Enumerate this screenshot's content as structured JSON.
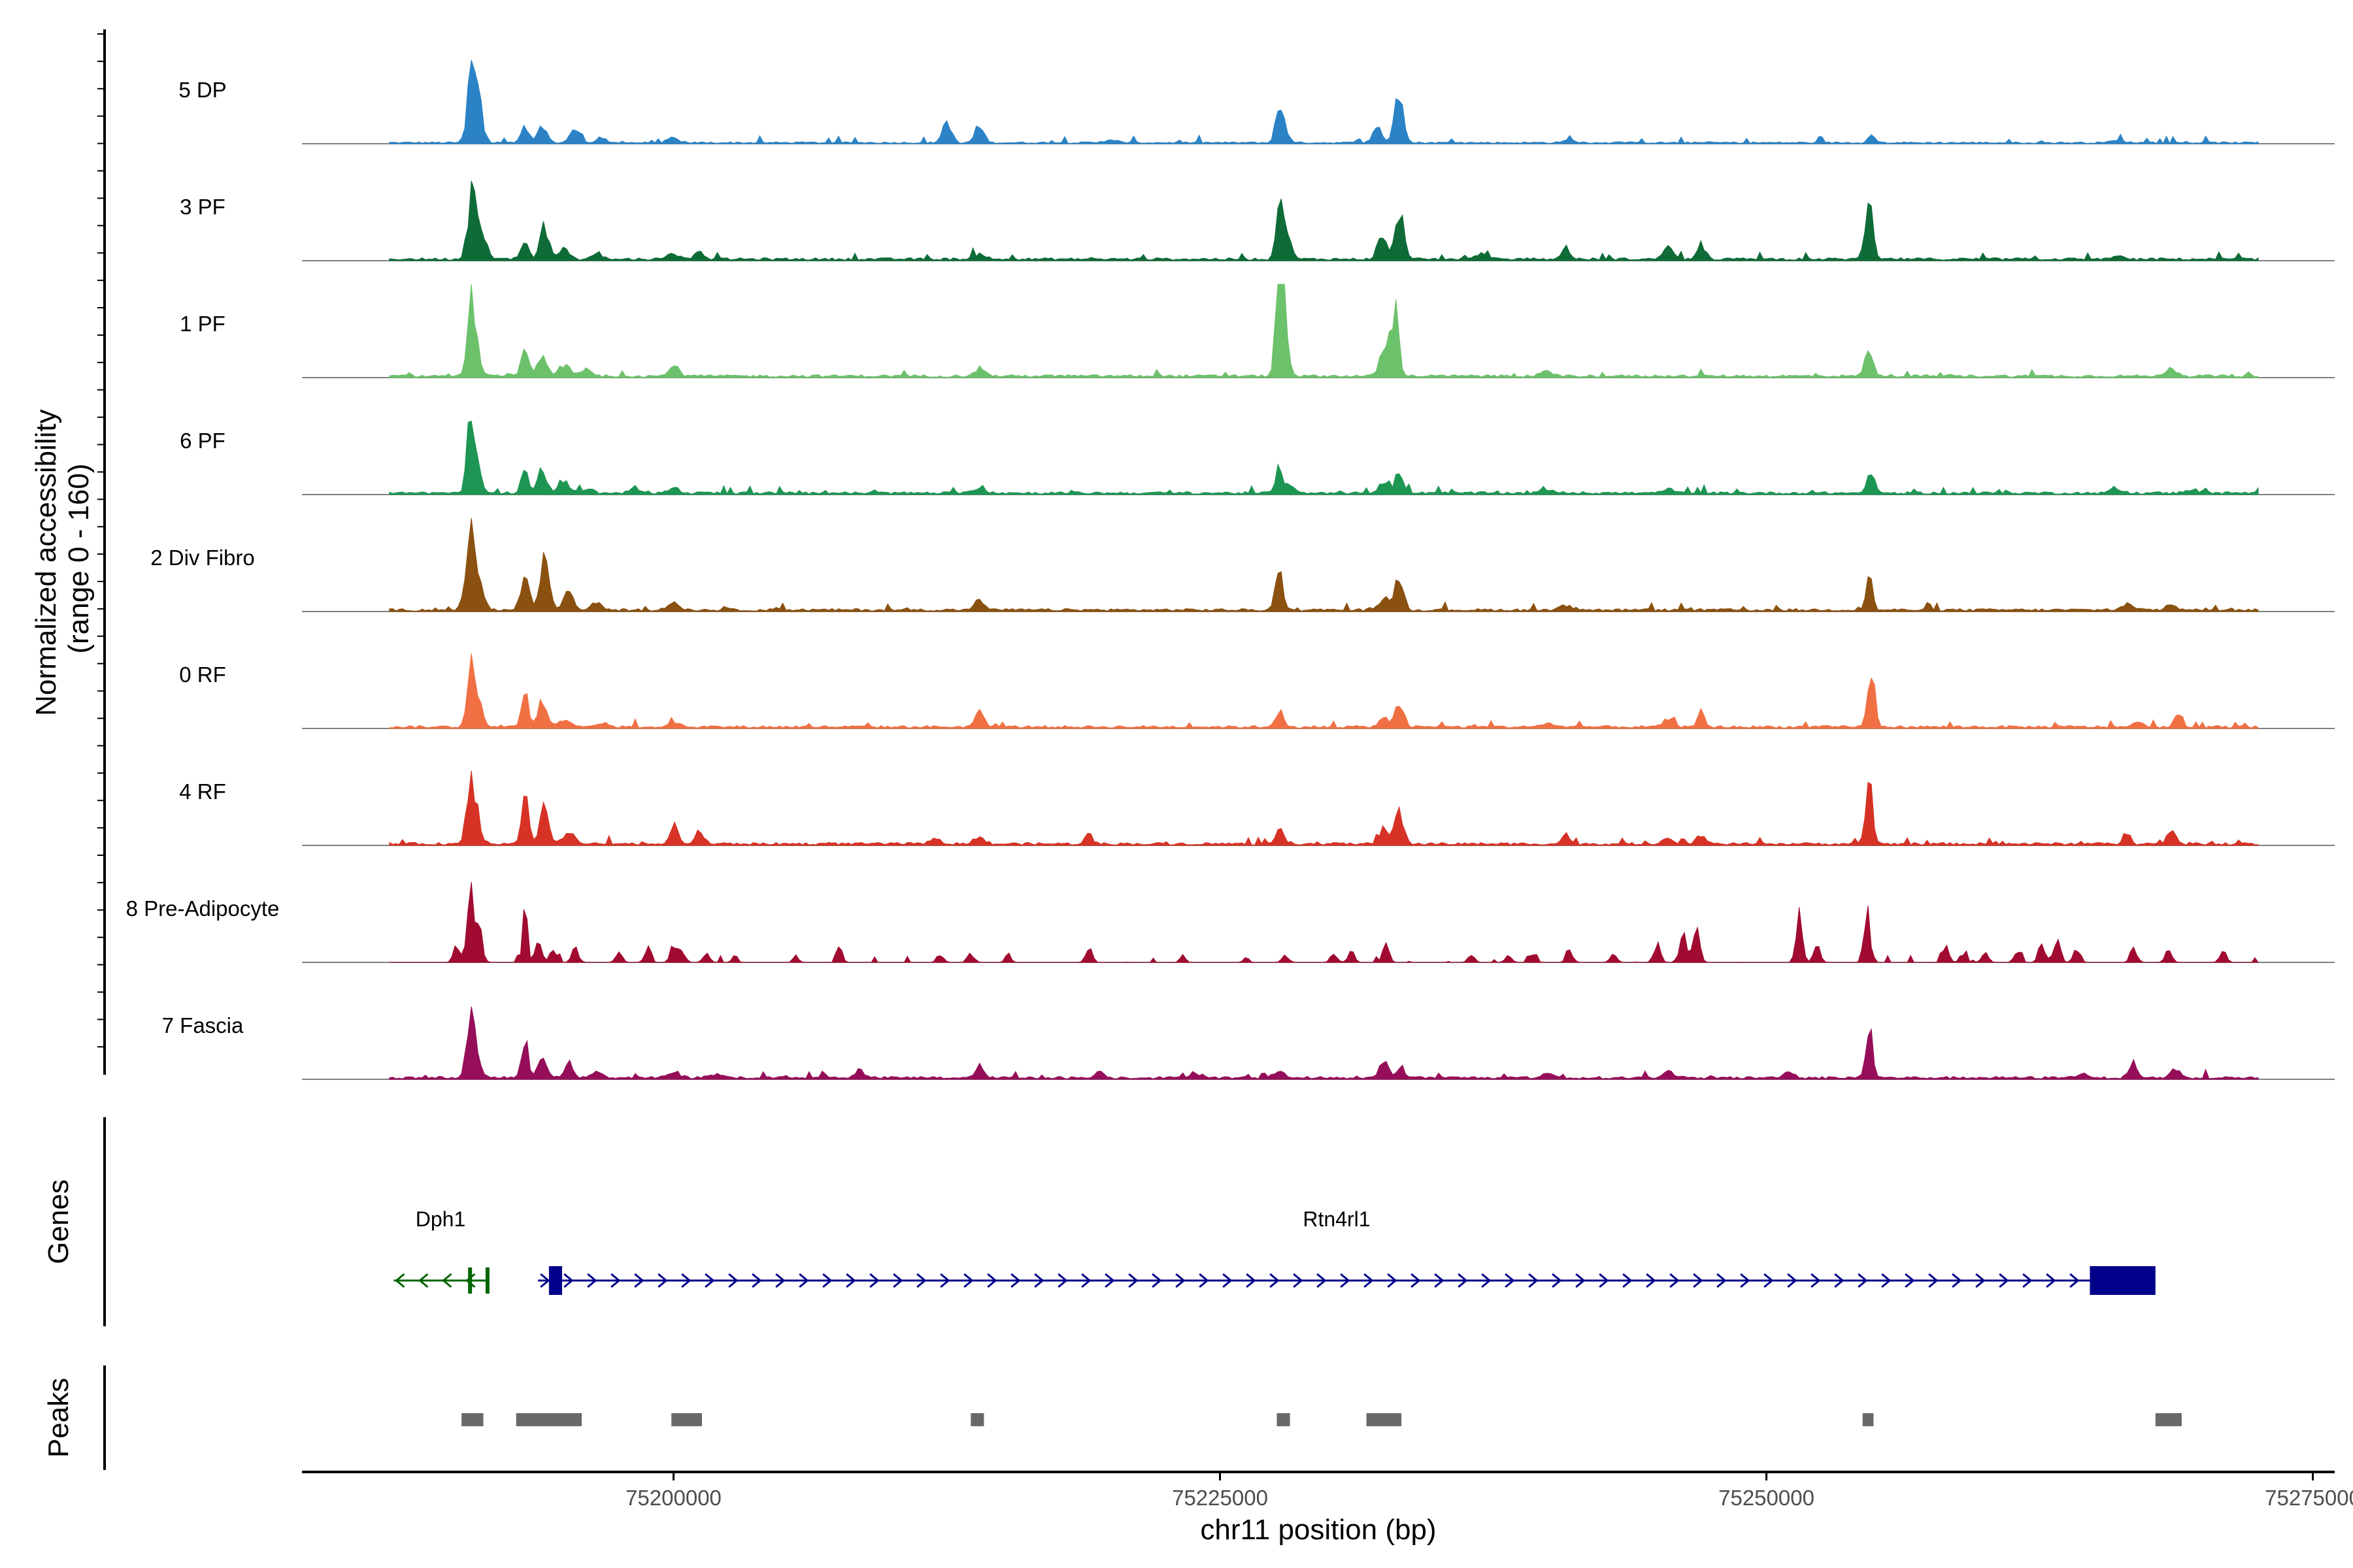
{
  "chart_data": {
    "type": "area",
    "title": "",
    "xlabel": "chr11 position (bp)",
    "ylabel": "Normalized accessibility\n(range 0 - 160)",
    "ylabel_lines": [
      "Normalized accessibility",
      "(range 0 - 160)"
    ],
    "ylim": [
      0,
      160
    ],
    "xlim": [
      75183000,
      75276000
    ],
    "x_ticks": [
      75200000,
      75225000,
      75250000,
      75275000
    ],
    "x_tick_labels": [
      "75200000",
      "75225000",
      "75250000",
      "75275000"
    ],
    "signal_extent": [
      75187000,
      75272500
    ],
    "series": [
      {
        "name": "5 DP",
        "color": "#2b83c6",
        "baseline": 2,
        "peaks": [
          [
            75190800,
            150,
            200
          ],
          [
            75191100,
            60,
            150
          ],
          [
            75193200,
            25,
            180
          ],
          [
            75194000,
            30,
            200
          ],
          [
            75195500,
            20,
            250
          ],
          [
            75196700,
            8,
            200
          ],
          [
            75200000,
            8,
            250
          ],
          [
            75212500,
            38,
            200
          ],
          [
            75214000,
            30,
            200
          ],
          [
            75220000,
            4,
            350
          ],
          [
            75227800,
            60,
            200
          ],
          [
            75232200,
            28,
            200
          ],
          [
            75233200,
            95,
            200
          ],
          [
            75241000,
            4,
            300
          ],
          [
            75254800,
            14,
            150
          ],
          [
            75266000,
            4,
            300
          ]
        ]
      },
      {
        "name": "3 PF",
        "color": "#0f6b37",
        "baseline": 3,
        "peaks": [
          [
            75190800,
            120,
            200
          ],
          [
            75191300,
            40,
            180
          ],
          [
            75193200,
            30,
            180
          ],
          [
            75194100,
            55,
            200
          ],
          [
            75195000,
            20,
            200
          ],
          [
            75196500,
            10,
            250
          ],
          [
            75200000,
            10,
            250
          ],
          [
            75201200,
            14,
            200
          ],
          [
            75214000,
            10,
            250
          ],
          [
            75227700,
            80,
            150
          ],
          [
            75228000,
            60,
            200
          ],
          [
            75233200,
            85,
            200
          ],
          [
            75232400,
            40,
            200
          ],
          [
            75237000,
            8,
            300
          ],
          [
            75240800,
            20,
            150
          ],
          [
            75245500,
            22,
            200
          ],
          [
            75247000,
            25,
            200
          ],
          [
            75254700,
            110,
            170
          ],
          [
            75266000,
            5,
            300
          ]
        ]
      },
      {
        "name": "1 PF",
        "color": "#6cc16b",
        "baseline": 3,
        "peaks": [
          [
            75190700,
            120,
            150
          ],
          [
            75191000,
            40,
            200
          ],
          [
            75193200,
            55,
            150
          ],
          [
            75194000,
            35,
            200
          ],
          [
            75195000,
            20,
            250
          ],
          [
            75196000,
            12,
            250
          ],
          [
            75200000,
            22,
            200
          ],
          [
            75214000,
            12,
            250
          ],
          [
            75227700,
            140,
            150
          ],
          [
            75227900,
            110,
            200
          ],
          [
            75233000,
            110,
            180
          ],
          [
            75232500,
            50,
            200
          ],
          [
            75240000,
            8,
            300
          ],
          [
            75254700,
            50,
            170
          ],
          [
            75268500,
            15,
            200
          ]
        ]
      },
      {
        "name": "6 PF",
        "color": "#1e9653",
        "baseline": 3,
        "peaks": [
          [
            75190700,
            120,
            160
          ],
          [
            75191000,
            40,
            200
          ],
          [
            75193200,
            45,
            160
          ],
          [
            75194000,
            40,
            200
          ],
          [
            75195000,
            20,
            250
          ],
          [
            75196000,
            8,
            250
          ],
          [
            75198200,
            10,
            200
          ],
          [
            75200000,
            8,
            250
          ],
          [
            75214000,
            8,
            250
          ],
          [
            75227700,
            40,
            160
          ],
          [
            75228200,
            15,
            200
          ],
          [
            75232500,
            20,
            200
          ],
          [
            75233200,
            35,
            200
          ],
          [
            75240000,
            6,
            300
          ],
          [
            75245500,
            8,
            200
          ],
          [
            75254800,
            40,
            160
          ],
          [
            75266000,
            8,
            250
          ],
          [
            75269500,
            6,
            300
          ]
        ]
      },
      {
        "name": "2 Div Fibro",
        "color": "#8b5110",
        "baseline": 3,
        "peaks": [
          [
            75190700,
            130,
            200
          ],
          [
            75191100,
            50,
            200
          ],
          [
            75193200,
            65,
            180
          ],
          [
            75194100,
            85,
            200
          ],
          [
            75195200,
            40,
            200
          ],
          [
            75196500,
            10,
            250
          ],
          [
            75200000,
            12,
            250
          ],
          [
            75214000,
            18,
            200
          ],
          [
            75227700,
            62,
            170
          ],
          [
            75232500,
            25,
            200
          ],
          [
            75233200,
            55,
            200
          ],
          [
            75240800,
            8,
            300
          ],
          [
            75254700,
            55,
            150
          ],
          [
            75266500,
            10,
            250
          ],
          [
            75268500,
            12,
            200
          ]
        ]
      },
      {
        "name": "0 RF",
        "color": "#f07044",
        "baseline": 3,
        "peaks": [
          [
            75190700,
            115,
            160
          ],
          [
            75191100,
            40,
            200
          ],
          [
            75193200,
            55,
            160
          ],
          [
            75194000,
            45,
            200
          ],
          [
            75195000,
            15,
            250
          ],
          [
            75196800,
            8,
            250
          ],
          [
            75200000,
            8,
            250
          ],
          [
            75214000,
            30,
            200
          ],
          [
            75227700,
            30,
            170
          ],
          [
            75232500,
            15,
            200
          ],
          [
            75233200,
            42,
            200
          ],
          [
            75240000,
            6,
            300
          ],
          [
            75245500,
            14,
            200
          ],
          [
            75247000,
            28,
            150
          ],
          [
            75254800,
            95,
            160
          ],
          [
            75267000,
            8,
            250
          ],
          [
            75268800,
            25,
            150
          ]
        ]
      },
      {
        "name": "4 RF",
        "color": "#d63326",
        "baseline": 3,
        "peaks": [
          [
            75190700,
            95,
            180
          ],
          [
            75191000,
            40,
            200
          ],
          [
            75193200,
            80,
            160
          ],
          [
            75194100,
            70,
            180
          ],
          [
            75195200,
            20,
            250
          ],
          [
            75200000,
            35,
            180
          ],
          [
            75201200,
            22,
            200
          ],
          [
            75212000,
            10,
            250
          ],
          [
            75214000,
            12,
            250
          ],
          [
            75219000,
            20,
            150
          ],
          [
            75227700,
            30,
            170
          ],
          [
            75232500,
            25,
            200
          ],
          [
            75233200,
            55,
            200
          ],
          [
            75240800,
            20,
            150
          ],
          [
            75245500,
            12,
            200
          ],
          [
            75247000,
            15,
            200
          ],
          [
            75254700,
            100,
            160
          ],
          [
            75266500,
            22,
            150
          ],
          [
            75268600,
            25,
            150
          ]
        ]
      },
      {
        "name": "8 Pre-Adipocyte",
        "color": "#a10b31",
        "baseline": 0,
        "peaks": [
          [
            75190100,
            30,
            150
          ],
          [
            75190700,
            155,
            120
          ],
          [
            75191100,
            60,
            150
          ],
          [
            75193200,
            120,
            100
          ],
          [
            75193800,
            35,
            150
          ],
          [
            75194500,
            25,
            150
          ],
          [
            75195500,
            25,
            150
          ],
          [
            75197500,
            15,
            150
          ],
          [
            75198800,
            15,
            150
          ],
          [
            75200000,
            30,
            150
          ],
          [
            75200400,
            20,
            150
          ],
          [
            75201500,
            15,
            150
          ],
          [
            75202800,
            12,
            120
          ],
          [
            75205600,
            12,
            120
          ],
          [
            75207600,
            25,
            120
          ],
          [
            75212200,
            15,
            150
          ],
          [
            75213600,
            15,
            150
          ],
          [
            75215300,
            18,
            120
          ],
          [
            75219000,
            25,
            150
          ],
          [
            75223300,
            12,
            120
          ],
          [
            75226200,
            10,
            120
          ],
          [
            75228000,
            12,
            150
          ],
          [
            75230200,
            15,
            150
          ],
          [
            75231000,
            18,
            150
          ],
          [
            75232600,
            30,
            150
          ],
          [
            75236500,
            12,
            150
          ],
          [
            75238200,
            12,
            150
          ],
          [
            75239300,
            15,
            150
          ],
          [
            75241000,
            20,
            150
          ],
          [
            75243000,
            12,
            150
          ],
          [
            75245000,
            30,
            150
          ],
          [
            75246200,
            55,
            150
          ],
          [
            75246800,
            75,
            150
          ],
          [
            75251500,
            80,
            150
          ],
          [
            75252300,
            30,
            150
          ],
          [
            75254600,
            85,
            140
          ],
          [
            75258200,
            25,
            150
          ],
          [
            75259000,
            15,
            150
          ],
          [
            75260000,
            20,
            150
          ],
          [
            75261500,
            20,
            150
          ],
          [
            75262600,
            35,
            150
          ],
          [
            75263300,
            40,
            150
          ],
          [
            75264200,
            25,
            150
          ],
          [
            75266800,
            25,
            150
          ],
          [
            75268400,
            20,
            150
          ],
          [
            75270900,
            18,
            150
          ]
        ]
      },
      {
        "name": "7 Fascia",
        "color": "#960e5a",
        "baseline": 3,
        "peaks": [
          [
            75190700,
            100,
            170
          ],
          [
            75191000,
            30,
            200
          ],
          [
            75193200,
            55,
            160
          ],
          [
            75194000,
            35,
            200
          ],
          [
            75195200,
            25,
            200
          ],
          [
            75196500,
            10,
            250
          ],
          [
            75200000,
            12,
            250
          ],
          [
            75202000,
            6,
            300
          ],
          [
            75208500,
            12,
            200
          ],
          [
            75214000,
            18,
            200
          ],
          [
            75219500,
            12,
            200
          ],
          [
            75224000,
            6,
            300
          ],
          [
            75227700,
            10,
            250
          ],
          [
            75232500,
            30,
            200
          ],
          [
            75233300,
            15,
            200
          ],
          [
            75240000,
            8,
            300
          ],
          [
            75245500,
            10,
            250
          ],
          [
            75251000,
            10,
            250
          ],
          [
            75254700,
            90,
            150
          ],
          [
            75264500,
            8,
            250
          ],
          [
            75266800,
            22,
            200
          ],
          [
            75268700,
            15,
            200
          ]
        ]
      }
    ]
  },
  "genes": {
    "track_label": "Genes",
    "items": [
      {
        "name": "Dph1",
        "strand": "-",
        "start": 75187200,
        "end": 75191500,
        "cds": [
          [
            75190600,
            75190700
          ],
          [
            75191400,
            75191500
          ]
        ],
        "color": "#006400"
      },
      {
        "name": "Rtn4rl1",
        "strand": "+",
        "start": 75193800,
        "end": 75267800,
        "cds": [
          [
            75194300,
            75194900
          ],
          [
            75264800,
            75267800
          ]
        ],
        "color": "#00008b"
      }
    ]
  },
  "peaks": {
    "track_label": "Peaks",
    "color": "#696969",
    "regions": [
      [
        75190300,
        75191300
      ],
      [
        75192800,
        75195800
      ],
      [
        75199900,
        75201300
      ],
      [
        75213600,
        75214200
      ],
      [
        75227600,
        75228200
      ],
      [
        75231700,
        75233300
      ],
      [
        75254400,
        75254900
      ],
      [
        75267800,
        75269000
      ]
    ]
  }
}
